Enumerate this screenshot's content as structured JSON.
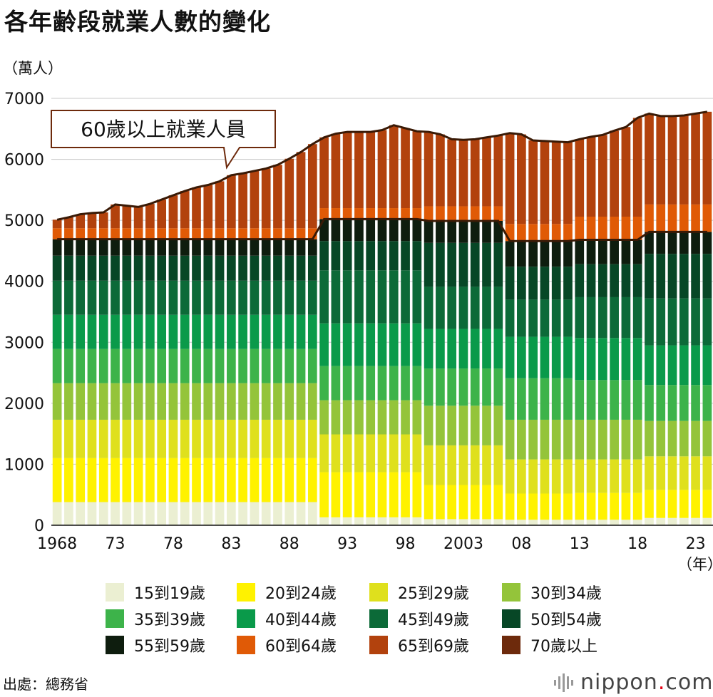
{
  "chart_data": {
    "type": "bar",
    "stacked": true,
    "title": "各年齢段就業人數的變化",
    "ylabel": "（萬人）",
    "xunit": "（年）",
    "ylim": [
      0,
      7000
    ],
    "yticks": [
      0,
      1000,
      2000,
      3000,
      4000,
      5000,
      6000,
      7000
    ],
    "grid": true,
    "legend_position": "bottom",
    "annotation": "60歲以上就業人員",
    "x": [
      1968,
      1969,
      1970,
      1971,
      1972,
      1973,
      1974,
      1975,
      1976,
      1977,
      1978,
      1979,
      1980,
      1981,
      1982,
      1983,
      1984,
      1985,
      1986,
      1987,
      1988,
      1989,
      1990,
      1991,
      1992,
      1993,
      1994,
      1995,
      1996,
      1997,
      1998,
      1999,
      2000,
      2001,
      2002,
      2003,
      2004,
      2005,
      2006,
      2007,
      2008,
      2009,
      2010,
      2011,
      2012,
      2013,
      2014,
      2015,
      2016,
      2017,
      2018,
      2019,
      2020,
      2021,
      2022,
      2023,
      2024
    ],
    "xtick_labels": [
      {
        "x": 1968,
        "label": "1968"
      },
      {
        "x": 1973,
        "label": "73"
      },
      {
        "x": 1978,
        "label": "78"
      },
      {
        "x": 1983,
        "label": "83"
      },
      {
        "x": 1988,
        "label": "88"
      },
      {
        "x": 1993,
        "label": "93"
      },
      {
        "x": 1998,
        "label": "98"
      },
      {
        "x": 2003,
        "label": "2003"
      },
      {
        "x": 2008,
        "label": "08"
      },
      {
        "x": 2013,
        "label": "13"
      },
      {
        "x": 2018,
        "label": "18"
      },
      {
        "x": 2023,
        "label": "23"
      }
    ],
    "totals": [
      5010,
      5050,
      5100,
      5120,
      5130,
      5260,
      5240,
      5220,
      5270,
      5340,
      5410,
      5480,
      5540,
      5580,
      5640,
      5740,
      5770,
      5810,
      5850,
      5910,
      6010,
      6120,
      6250,
      6360,
      6420,
      6450,
      6450,
      6450,
      6480,
      6560,
      6510,
      6460,
      6450,
      6410,
      6330,
      6320,
      6330,
      6360,
      6390,
      6430,
      6410,
      6310,
      6300,
      6290,
      6280,
      6330,
      6370,
      6400,
      6470,
      6530,
      6680,
      6750,
      6710,
      6710,
      6720,
      6750,
      6780
    ],
    "ranges": [
      {
        "from": 1968,
        "to": 1990,
        "values": [
          380,
          720,
          630,
          600,
          560,
          560,
          560,
          410,
          270,
          180
        ]
      },
      {
        "from": 1991,
        "to": 1999,
        "values": [
          130,
          740,
          620,
          560,
          560,
          700,
          870,
          480,
          360,
          180
        ]
      },
      {
        "from": 2000,
        "to": 2006,
        "values": [
          100,
          560,
          650,
          650,
          610,
          650,
          690,
          720,
          360,
          240
        ]
      },
      {
        "from": 2007,
        "to": 2012,
        "values": [
          90,
          430,
          560,
          650,
          680,
          680,
          610,
          540,
          420,
          280
        ]
      },
      {
        "from": 2013,
        "to": 2018,
        "values": [
          90,
          440,
          550,
          650,
          650,
          690,
          670,
          540,
          400,
          380
        ]
      },
      {
        "from": 2019,
        "to": 2024,
        "values": [
          120,
          460,
          550,
          580,
          590,
          650,
          770,
          730,
          360,
          450
        ]
      }
    ],
    "series": [
      {
        "name": "15到19歲",
        "color": "#ebefd2"
      },
      {
        "name": "20到24歲",
        "color": "#fff200"
      },
      {
        "name": "25到29歲",
        "color": "#dfe01d"
      },
      {
        "name": "30到34歲",
        "color": "#94c43a"
      },
      {
        "name": "35到39歲",
        "color": "#3db34a"
      },
      {
        "name": "40到44歲",
        "color": "#0a9a4a"
      },
      {
        "name": "45到49歲",
        "color": "#0c6a38"
      },
      {
        "name": "50到54歲",
        "color": "#074726"
      },
      {
        "name": "55到59歲",
        "color": "#0e1d0e"
      },
      {
        "name": "60到64歲",
        "color": "#e05a06"
      },
      {
        "name": "65到69歲",
        "color": "#b2420d"
      },
      {
        "name": "70歲以上",
        "color": "#6d2a0c"
      }
    ]
  },
  "source": "出處：總務省",
  "brand": {
    "name": "nippon",
    "dot": ".",
    "tld": "com"
  }
}
